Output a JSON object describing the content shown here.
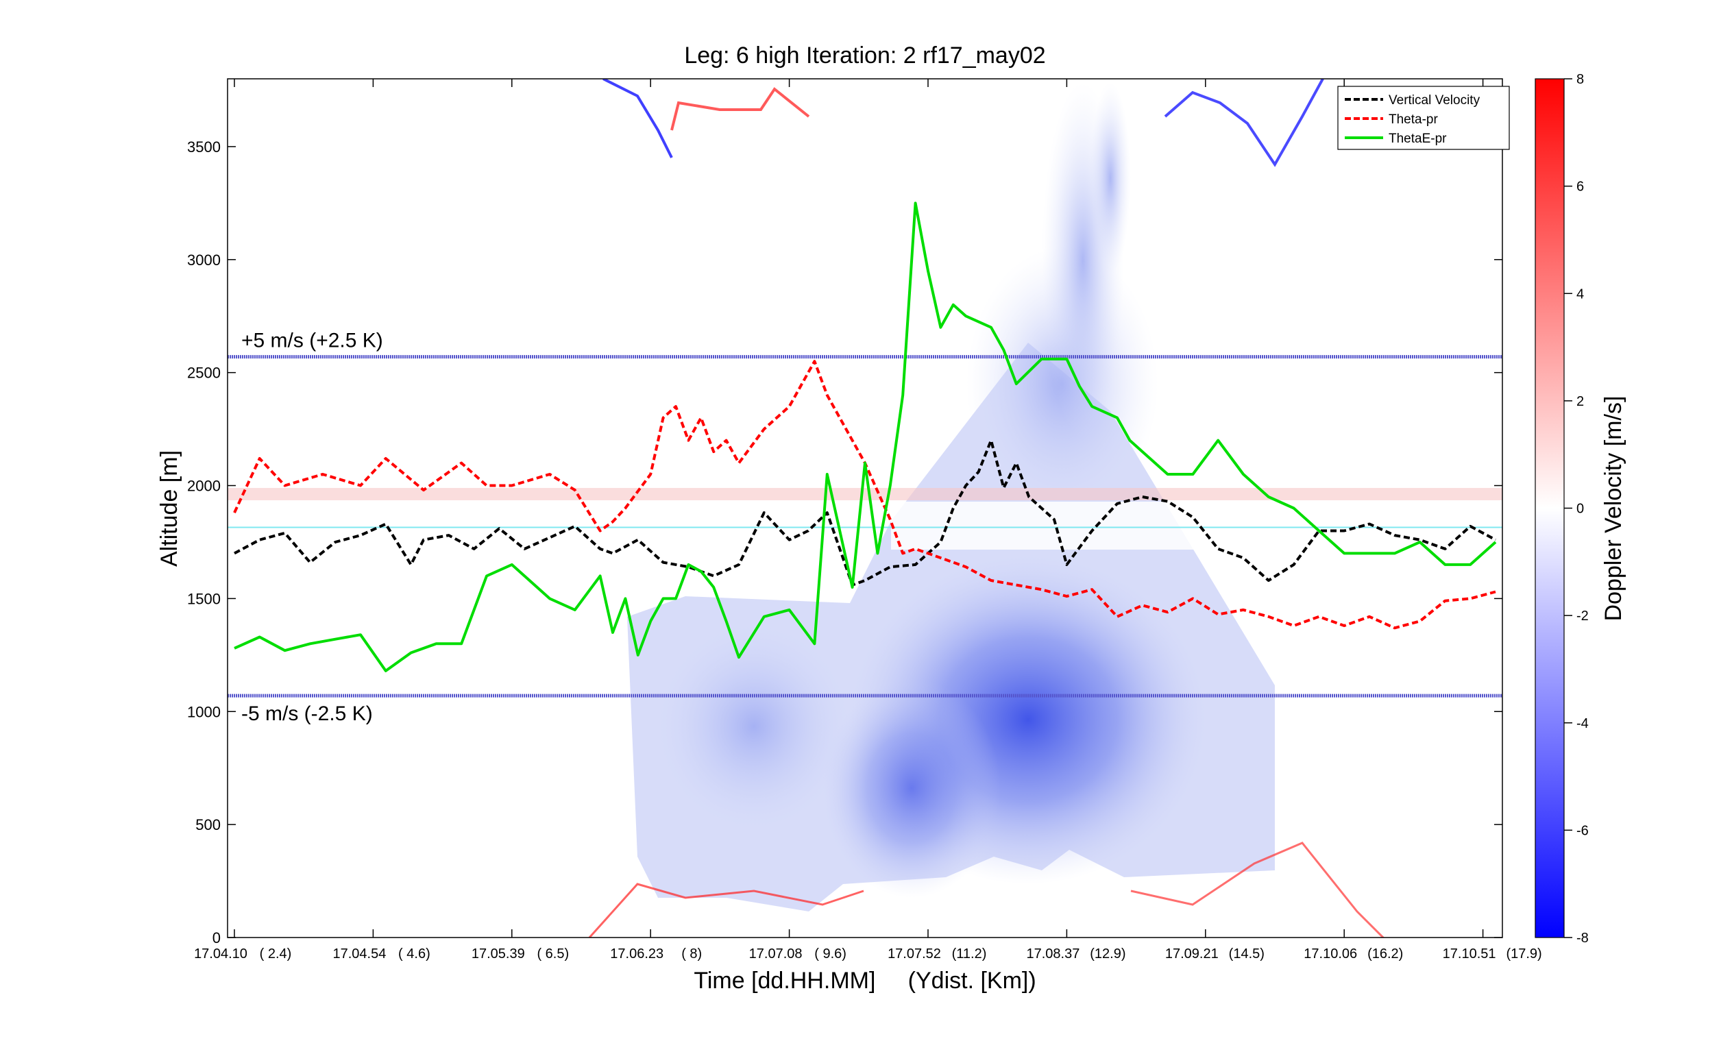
{
  "chart_data": {
    "type": "line",
    "title": "Leg: 6 high Iteration: 2  rf17_may02",
    "xlabel": "Time [dd.HH.MM]     (Ydist. [Km])",
    "ylabel": "Altitude [m]",
    "colorbar_label": "Doppler Velocity [m/s]",
    "ylim": [
      0,
      3800
    ],
    "xlim": [
      0,
      1
    ],
    "clim": [
      -8,
      8
    ],
    "colormap": [
      "#0000ff",
      "#ffffff",
      "#ff0000"
    ],
    "y_ticks": [
      0,
      500,
      1000,
      1500,
      2000,
      2500,
      3000,
      3500
    ],
    "cbar_ticks": [
      -8,
      -6,
      -4,
      -2,
      0,
      2,
      4,
      6,
      8
    ],
    "x_ticks": [
      {
        "x": 0.0,
        "time": "17.04.10",
        "dist": "( 2.4)"
      },
      {
        "x": 0.11,
        "time": "17.04.54",
        "dist": "( 4.6)"
      },
      {
        "x": 0.22,
        "time": "17.05.39",
        "dist": "( 6.5)"
      },
      {
        "x": 0.33,
        "time": "17.06.23",
        "dist": "(   8)"
      },
      {
        "x": 0.44,
        "time": "17.07.08",
        "dist": "( 9.6)"
      },
      {
        "x": 0.55,
        "time": "17.07.52",
        "dist": "(11.2)"
      },
      {
        "x": 0.66,
        "time": "17.08.37",
        "dist": "(12.9)"
      },
      {
        "x": 0.77,
        "time": "17.09.21",
        "dist": "(14.5)"
      },
      {
        "x": 0.88,
        "time": "17.10.06",
        "dist": "(16.2)"
      },
      {
        "x": 0.99,
        "time": "17.10.51",
        "dist": "(17.9)"
      }
    ],
    "annotations": [
      {
        "text": "+5 m/s (+2.5 K)",
        "y": 2570,
        "color": "#5555cc"
      },
      {
        "text": "-5 m/s (-2.5 K)",
        "y": 1070,
        "color": "#5555cc"
      }
    ],
    "reference_line": {
      "y": 1815,
      "color": "#7fe8f0"
    },
    "legend_position": "top-right",
    "series": [
      {
        "name": "Vertical Velocity",
        "color": "#000000",
        "dash": true,
        "x": [
          0.0,
          0.02,
          0.04,
          0.06,
          0.08,
          0.1,
          0.12,
          0.14,
          0.15,
          0.17,
          0.19,
          0.21,
          0.23,
          0.25,
          0.27,
          0.29,
          0.3,
          0.32,
          0.34,
          0.36,
          0.38,
          0.4,
          0.42,
          0.44,
          0.455,
          0.47,
          0.49,
          0.5,
          0.52,
          0.54,
          0.56,
          0.57,
          0.58,
          0.59,
          0.6,
          0.61,
          0.62,
          0.63,
          0.65,
          0.66,
          0.68,
          0.7,
          0.72,
          0.74,
          0.76,
          0.78,
          0.8,
          0.82,
          0.84,
          0.86,
          0.88,
          0.9,
          0.92,
          0.94,
          0.96,
          0.98,
          1.0
        ],
        "y": [
          1700,
          1760,
          1790,
          1660,
          1750,
          1780,
          1830,
          1650,
          1760,
          1780,
          1720,
          1810,
          1720,
          1770,
          1820,
          1720,
          1700,
          1760,
          1660,
          1640,
          1600,
          1650,
          1880,
          1760,
          1800,
          1880,
          1560,
          1580,
          1640,
          1650,
          1750,
          1900,
          2000,
          2060,
          2200,
          1990,
          2100,
          1950,
          1850,
          1650,
          1800,
          1920,
          1950,
          1930,
          1860,
          1720,
          1680,
          1580,
          1650,
          1800,
          1800,
          1830,
          1780,
          1760,
          1720,
          1820,
          1760
        ]
      },
      {
        "name": "Theta-pr",
        "color": "#ff0000",
        "dash": true,
        "x": [
          0.0,
          0.02,
          0.04,
          0.07,
          0.1,
          0.12,
          0.15,
          0.18,
          0.2,
          0.22,
          0.25,
          0.27,
          0.29,
          0.3,
          0.31,
          0.33,
          0.34,
          0.35,
          0.36,
          0.37,
          0.38,
          0.39,
          0.4,
          0.42,
          0.44,
          0.46,
          0.47,
          0.49,
          0.5,
          0.52,
          0.53,
          0.54,
          0.56,
          0.58,
          0.6,
          0.62,
          0.64,
          0.66,
          0.68,
          0.7,
          0.72,
          0.74,
          0.76,
          0.78,
          0.8,
          0.82,
          0.84,
          0.86,
          0.88,
          0.9,
          0.92,
          0.94,
          0.96,
          0.98,
          1.0
        ],
        "y": [
          1880,
          2120,
          2000,
          2050,
          2000,
          2120,
          1980,
          2100,
          2000,
          2000,
          2050,
          1980,
          1800,
          1840,
          1900,
          2050,
          2300,
          2350,
          2200,
          2300,
          2150,
          2200,
          2100,
          2250,
          2350,
          2550,
          2400,
          2200,
          2100,
          1850,
          1700,
          1720,
          1680,
          1640,
          1580,
          1560,
          1540,
          1510,
          1540,
          1420,
          1470,
          1440,
          1500,
          1430,
          1450,
          1420,
          1380,
          1420,
          1380,
          1420,
          1370,
          1400,
          1490,
          1500,
          1530
        ]
      },
      {
        "name": "ThetaE-pr",
        "color": "#00dd00",
        "dash": false,
        "x": [
          0.0,
          0.02,
          0.04,
          0.06,
          0.08,
          0.1,
          0.12,
          0.14,
          0.16,
          0.18,
          0.2,
          0.22,
          0.23,
          0.25,
          0.27,
          0.29,
          0.3,
          0.31,
          0.32,
          0.33,
          0.34,
          0.35,
          0.36,
          0.37,
          0.38,
          0.39,
          0.4,
          0.42,
          0.44,
          0.46,
          0.47,
          0.48,
          0.49,
          0.5,
          0.51,
          0.52,
          0.53,
          0.54,
          0.55,
          0.56,
          0.57,
          0.58,
          0.6,
          0.61,
          0.62,
          0.64,
          0.66,
          0.67,
          0.68,
          0.7,
          0.71,
          0.72,
          0.74,
          0.76,
          0.78,
          0.8,
          0.82,
          0.84,
          0.86,
          0.88,
          0.9,
          0.92,
          0.94,
          0.96,
          0.98,
          1.0
        ],
        "y": [
          1280,
          1330,
          1270,
          1300,
          1320,
          1340,
          1180,
          1260,
          1300,
          1300,
          1600,
          1650,
          1600,
          1500,
          1450,
          1600,
          1350,
          1500,
          1250,
          1400,
          1500,
          1500,
          1650,
          1620,
          1550,
          1400,
          1240,
          1420,
          1450,
          1300,
          2050,
          1800,
          1550,
          2100,
          1700,
          2000,
          2400,
          3250,
          2950,
          2700,
          2800,
          2750,
          2700,
          2600,
          2450,
          2560,
          2560,
          2440,
          2350,
          2300,
          2200,
          2150,
          2050,
          2050,
          2200,
          2050,
          1950,
          1900,
          1800,
          1700,
          1700,
          1700,
          1750,
          1650,
          1650,
          1750
        ]
      }
    ]
  }
}
